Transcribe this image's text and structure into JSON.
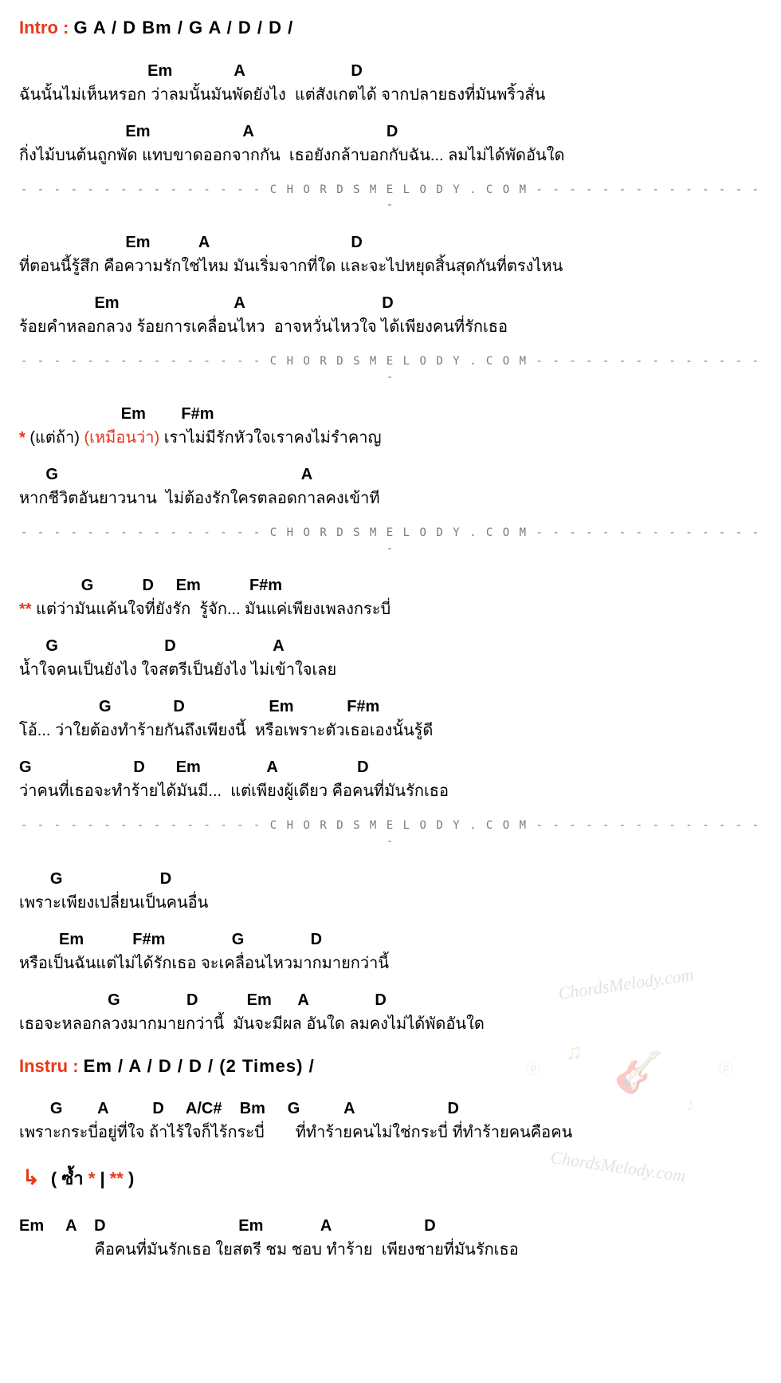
{
  "colors": {
    "accent": "#e8391a",
    "text": "#000000",
    "divider": "#7a7a7a",
    "background": "#ffffff",
    "watermark_orange": "#f0a050",
    "watermark_grey": "#999999"
  },
  "typography": {
    "body_fontsize": 20,
    "label_fontsize": 22,
    "divider_fontsize": 14,
    "font_family": "Arial"
  },
  "intro": {
    "label": "Intro : ",
    "chords": "G  A  /  D  Bm  /  G  A  /  D  /  D  /"
  },
  "verses": [
    {
      "lines": [
        {
          "chords": "                             Em              A                        D",
          "lyric": "ฉันนั้นไม่เห็นหรอก ว่าลมนั้นมันพัดยังไง  แต่สังเกตได้ จากปลายธงที่มันพริ้วสั่น"
        },
        {
          "chords": "                        Em                     A                              D",
          "lyric": "กิ่งไม้บนต้นถูกพัด แทบขาดออกจากกัน  เธอยังกล้าบอกกับฉัน... ลมไม่ได้พัดอันใด"
        }
      ]
    },
    {
      "lines": [
        {
          "chords": "                        Em           A                                D",
          "lyric": "ที่ตอนนี้รู้สึก คือความรักใช่ไหม มันเริ่มจากที่ใด และจะไปหยุดสิ้นสุดกันที่ตรงไหน"
        },
        {
          "chords": "                 Em                          A                               D",
          "lyric": "ร้อยคำหลอกลวง ร้อยการเคลื่อนไหว  อาจหวั่นไหวใจ ได้เพียงคนที่รักเธอ"
        }
      ]
    }
  ],
  "prechorus": {
    "lines": [
      {
        "chords": "                       Em        F#m",
        "star": "* ",
        "paren1": "(แต่ถ้า) ",
        "paren2": "(เหมือนว่า) ",
        "lyric_tail": "เราไม่มีรักหัวใจเราคงไม่รำคาญ"
      },
      {
        "chords": "      G                                                       A",
        "lyric": "หากชีวิตอันยาวนาน  ไม่ต้องรักใครตลอดกาลคงเข้าที"
      }
    ]
  },
  "chorus": {
    "lines": [
      {
        "chords": "              G           D     Em           F#m",
        "star": "** ",
        "lyric_tail": "แต่ว่ามันแค้นใจที่ยังรัก  รู้จัก... มันแค่เพียงเพลงกระบี่"
      },
      {
        "chords": "      G                        D                      A",
        "lyric": "น้ำใจคนเป็นยังไง ใจสตรีเป็นยังไง ไม่เข้าใจเลย"
      },
      {
        "chords": "                  G              D                   Em            F#m",
        "lyric": "โอ้... ว่าใยต้องทำร้ายกันถึงเพียงนี้  หรือเพราะตัวเธอเองนั้นรู้ดี"
      },
      {
        "chords": "G                       D       Em               A                  D",
        "lyric": "ว่าคนที่เธอจะทำร้ายได้มันมี...  แต่เพียงผู้เดียว คือคนที่มันรักเธอ"
      }
    ]
  },
  "bridge": {
    "lines": [
      {
        "chords": "       G                      D",
        "lyric": "เพราะเพียงเปลี่ยนเป็นคนอื่น"
      },
      {
        "chords": "         Em           F#m               G               D",
        "lyric": "หรือเป็นฉันแต่ไม่ได้รักเธอ จะเคลื่อนไหวมากมายกว่านี้"
      },
      {
        "chords": "                    G               D           Em      A               D",
        "lyric": "เธอจะหลอกลวงมากมายกว่านี้  มันจะมีผล อันใด ลมคงไม่ได้พัดอันใด"
      }
    ]
  },
  "instru": {
    "label": "Instru : ",
    "chords": "Em  /  A  /  D  /  D  /  (2 Times)  /"
  },
  "post_instru": {
    "lines": [
      {
        "chords": "       G        A          D     A/C#    Bm     G          A                     D",
        "lyric": "เพราะกระบี่อยู่ที่ใจ ถ้าไร้ใจก็ไร้กระบี่       ที่ทำร้ายคนไม่ใช่กระบี่ ที่ทำร้ายคนคือคน"
      }
    ]
  },
  "repeat": {
    "arrow": "↳",
    "text": "( ซ้ำ  *  |  ** )"
  },
  "outro": {
    "lines": [
      {
        "chords": "Em     A    D                              Em             A                     D",
        "lyric": "                 คือคนที่มันรักเธอ ใยสตรี ชม ชอบ ทำร้าย  เพียงชายที่มันรักเธอ"
      }
    ]
  },
  "divider_text": "- - - - - - - - - - - - - - -   C H O R D S M E L O D Y . C O M   - - - - - - - - - - - - - - -",
  "watermark": {
    "top_text": "ChordsMelody.com",
    "bottom_text": "ChordsMelody.com",
    "guitar_icon": "🎸",
    "note1": "♫",
    "note2": "♪",
    "p1": "ⓟ",
    "p2": "ⓟ"
  }
}
